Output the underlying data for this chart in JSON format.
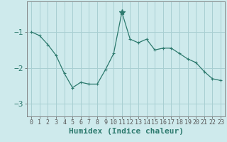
{
  "x": [
    0,
    1,
    2,
    3,
    4,
    5,
    6,
    7,
    8,
    9,
    10,
    11,
    12,
    13,
    14,
    15,
    16,
    17,
    18,
    19,
    20,
    21,
    22,
    23
  ],
  "y": [
    -1.0,
    -1.1,
    -1.35,
    -1.65,
    -2.15,
    -2.55,
    -2.4,
    -2.45,
    -2.45,
    -2.05,
    -1.6,
    -0.45,
    -1.2,
    -1.3,
    -1.2,
    -1.5,
    -1.45,
    -1.45,
    -1.6,
    -1.75,
    -1.85,
    -2.1,
    -2.3,
    -2.35
  ],
  "line_color": "#2d7a6e",
  "peak_index": 11,
  "bg_color": "#ceeaec",
  "grid_color": "#a8cfd2",
  "axis_color": "#2d7a6e",
  "xlabel": "Humidex (Indice chaleur)",
  "xlabel_fontsize": 8,
  "tick_fontsize": 6,
  "yticks": [
    -3,
    -2,
    -1
  ],
  "ylim": [
    -3.35,
    -0.15
  ],
  "xlim": [
    -0.5,
    23.5
  ]
}
